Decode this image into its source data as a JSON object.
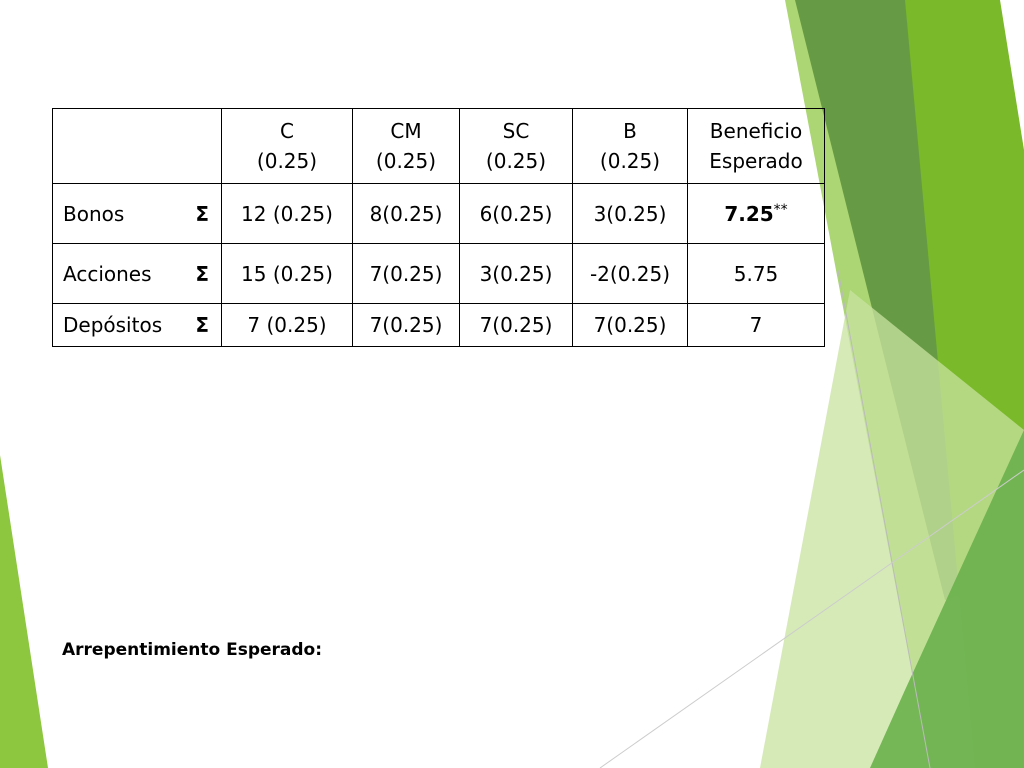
{
  "table": {
    "header": [
      [
        "C",
        "(0.25)"
      ],
      [
        "CM",
        "(0.25)"
      ],
      [
        "SC",
        "(0.25)"
      ],
      [
        "B",
        "(0.25)"
      ],
      [
        "Beneficio",
        "Esperado"
      ]
    ],
    "rows": [
      {
        "label": "Bonos",
        "symbol": "Σ",
        "cells": [
          "12 (0.25)",
          "8(0.25)",
          "6(0.25)",
          "3(0.25)"
        ],
        "result": "7.25",
        "note": "**"
      },
      {
        "label": "Acciones",
        "symbol": "Σ",
        "cells": [
          "15 (0.25)",
          "7(0.25)",
          "3(0.25)",
          "-2(0.25)"
        ],
        "result": "5.75"
      },
      {
        "label": "Depósitos",
        "symbol": "Σ",
        "cells": [
          "7 (0.25)",
          "7(0.25)",
          "7(0.25)",
          "7(0.25)"
        ],
        "result": "7"
      }
    ]
  },
  "footer": {
    "text": "Arrepentimiento Esperado:"
  }
}
